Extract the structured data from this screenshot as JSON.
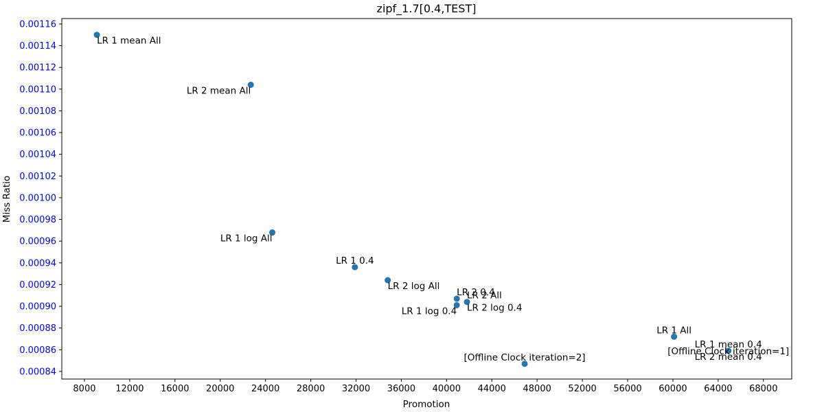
{
  "chart_data": {
    "type": "scatter",
    "title": "zipf_1.7[0.4,TEST]",
    "xlabel": "Promotion",
    "ylabel": "Miss Ratio",
    "xlim": [
      6000,
      70500
    ],
    "ylim": [
      0.000833,
      0.001165
    ],
    "xticks": [
      "8000",
      "12000",
      "16000",
      "20000",
      "24000",
      "28000",
      "32000",
      "36000",
      "40000",
      "44000",
      "48000",
      "52000",
      "56000",
      "60000",
      "64000",
      "68000"
    ],
    "yticks": [
      "0.00084",
      "0.00086",
      "0.00088",
      "0.00090",
      "0.00092",
      "0.00094",
      "0.00096",
      "0.00098",
      "0.00100",
      "0.00102",
      "0.00104",
      "0.00106",
      "0.00108",
      "0.00110",
      "0.00112",
      "0.00114",
      "0.00116"
    ],
    "grid": false,
    "point_color": "#1f77b4",
    "ytick_color": "#0000ff",
    "points": [
      {
        "label": "LR 1 mean All",
        "x": 9100,
        "y": 0.00115,
        "ha": "left",
        "va": "top"
      },
      {
        "label": "LR 2 mean All",
        "x": 22700,
        "y": 0.001104,
        "ha": "right",
        "va": "top"
      },
      {
        "label": "LR 1 log All",
        "x": 24600,
        "y": 0.000968,
        "ha": "right",
        "va": "top"
      },
      {
        "label": "LR 1 0.4",
        "x": 31900,
        "y": 0.000936,
        "ha": "center",
        "va": "bottom"
      },
      {
        "label": "LR 2 log All",
        "x": 34800,
        "y": 0.000924,
        "ha": "left",
        "va": "top"
      },
      {
        "label": "LR 2 0.4",
        "x": 40900,
        "y": 0.000907,
        "ha": "left",
        "va": "bottom"
      },
      {
        "label": "LR 2 All",
        "x": 41800,
        "y": 0.000904,
        "ha": "left",
        "va": "bottom"
      },
      {
        "label": "LR 1 log 0.4",
        "x": 40900,
        "y": 0.000901,
        "ha": "right",
        "va": "top"
      },
      {
        "label": "LR 2 log 0.4",
        "x": 41800,
        "y": 0.000904,
        "ha": "left",
        "va": "top"
      },
      {
        "label": "LR 1 All",
        "x": 60100,
        "y": 0.000872,
        "ha": "center",
        "va": "bottom"
      },
      {
        "label": "LR 1 mean 0.4",
        "x": 64900,
        "y": 0.000859,
        "ha": "center",
        "va": "bottom"
      },
      {
        "label": "[Offline Clock iteration=1]",
        "x": 64900,
        "y": 0.000859,
        "ha": "center",
        "va": "center"
      },
      {
        "label": "[Offline Clock iteration=2]",
        "x": 46900,
        "y": 0.000847,
        "ha": "center",
        "va": "bottom"
      },
      {
        "label": "LR 2 mean 0.4",
        "x": 64900,
        "y": 0.000859,
        "ha": "center",
        "va": "top"
      }
    ]
  }
}
